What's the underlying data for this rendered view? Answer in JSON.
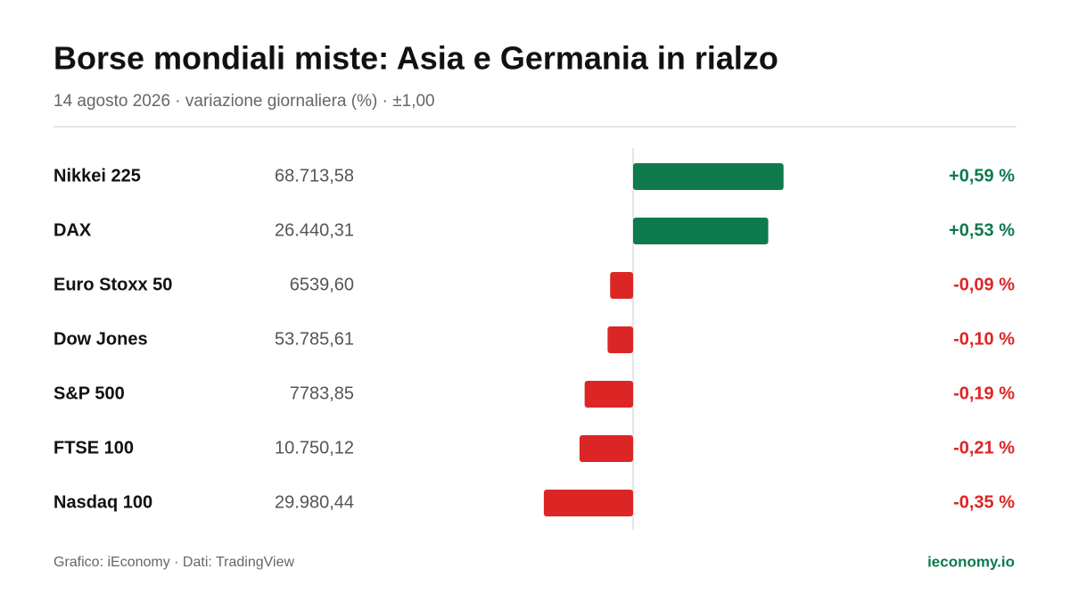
{
  "chart_data": {
    "type": "hbar",
    "title": "Borse mondiali miste: Asia e Germania in rialzo",
    "subtitle": "14 agosto 2026 · variazione giornaliera (%) · ±1,00",
    "categories": [
      "Nikkei 225",
      "DAX",
      "Euro Stoxx 50",
      "Dow Jones",
      "S&P 500",
      "FTSE 100",
      "Nasdaq 100"
    ],
    "prices": [
      "68.713,58",
      "26.440,31",
      "6539,60",
      "53.785,61",
      "7783,85",
      "10.750,12",
      "29.980,44"
    ],
    "values": [
      0.59,
      0.53,
      -0.09,
      -0.1,
      -0.19,
      -0.21,
      -0.35
    ],
    "value_labels": [
      "+0,59 %",
      "+0,53 %",
      "-0,09 %",
      "-0,10 %",
      "-0,19 %",
      "-0,21 %",
      "-0,35 %"
    ],
    "positive_color": "#0e7a4e",
    "negative_color": "#dc2626",
    "xlim": [
      -1,
      1
    ],
    "source": "Grafico: iEconomy · Dati: TradingView",
    "brand": "ieconomy.io"
  }
}
